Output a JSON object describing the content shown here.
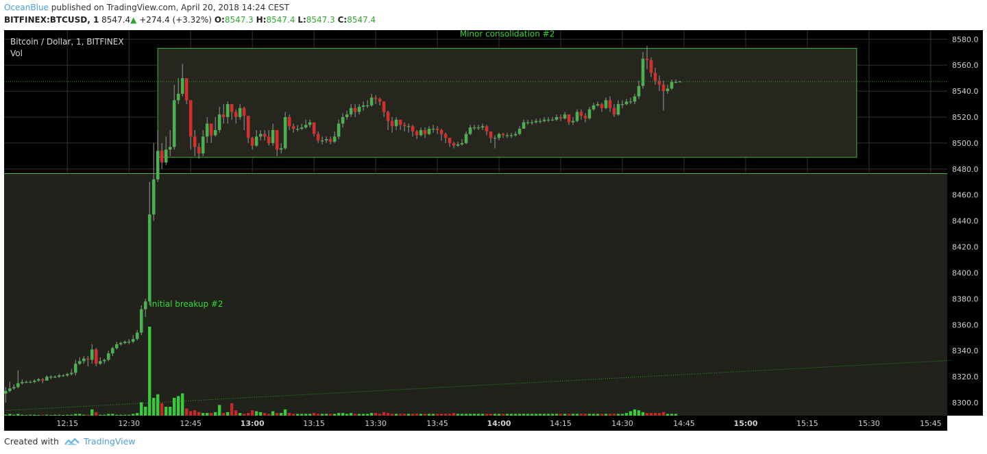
{
  "header": {
    "author": "OceanBlue",
    "published": " published on TradingView.com, April 20, 2018 14:24 CEST",
    "symbol": "BITFINEX:BTCUSD, 1",
    "last": "8547.4",
    "up_icon": "triangle-up-icon",
    "change": "+274.4 (+3.32%)",
    "o_label": "O:",
    "o": "8547.3",
    "h_label": "H:",
    "h": "8547.4",
    "l_label": "L:",
    "l": "8547.3",
    "c_label": "C:",
    "c": "8547.4"
  },
  "legend": {
    "title": "Bitcoin / Dollar, 1, BITFINEX",
    "vol": "Vol"
  },
  "annotations": {
    "box_label": "Minor consolidation #2",
    "breakup_label": "Initial breakup #2"
  },
  "footer": {
    "created": "Created with",
    "brand": "TradingView",
    "logo_icon": "tradingview-logo-icon"
  },
  "colors": {
    "background": "#000000",
    "up": "#4caf50",
    "down": "#d32f2f",
    "vol_up": "#3cc83c",
    "vol_down": "#c82828",
    "annotation": "#33dd33",
    "grid": "#333333",
    "author": "#4aa0d8"
  },
  "chart_data": {
    "type": "candlestick",
    "title": "Bitcoin / Dollar, 1, BITFINEX",
    "interval_minutes": 1,
    "start_time": "12:04",
    "ylim": [
      8290,
      8587
    ],
    "y_ticks": [
      8300,
      8320,
      8340,
      8360,
      8380,
      8400,
      8420,
      8440,
      8460,
      8480,
      8500,
      8520,
      8540,
      8560,
      8580
    ],
    "x_ticks": [
      {
        "label": "12:15",
        "bold": false
      },
      {
        "label": "12:30",
        "bold": false
      },
      {
        "label": "12:45",
        "bold": false
      },
      {
        "label": "13:00",
        "bold": true
      },
      {
        "label": "13:15",
        "bold": false
      },
      {
        "label": "13:30",
        "bold": false
      },
      {
        "label": "13:45",
        "bold": false
      },
      {
        "label": "14:00",
        "bold": true
      },
      {
        "label": "14:15",
        "bold": false
      },
      {
        "label": "14:30",
        "bold": false
      },
      {
        "label": "14:45",
        "bold": false
      },
      {
        "label": "15:00",
        "bold": true
      },
      {
        "label": "15:15",
        "bold": false
      },
      {
        "label": "15:30",
        "bold": false
      },
      {
        "label": "15:45",
        "bold": false
      }
    ],
    "x_tick_minutes": [
      15,
      30,
      45,
      60,
      75,
      90,
      105,
      120,
      135,
      150,
      165,
      180,
      195,
      210,
      225
    ],
    "x_end_minutes": 232,
    "closes": [
      8309,
      8311,
      8312,
      8315,
      8316,
      8316,
      8316,
      8317,
      8318,
      8317,
      8320,
      8320,
      8320,
      8321,
      8321,
      8322,
      8323,
      8330,
      8332,
      8334,
      8333,
      8341,
      8330,
      8332,
      8333,
      8338,
      8342,
      8345,
      8346,
      8347,
      8347,
      8349,
      8354,
      8372,
      8378,
      8445,
      8472,
      8494,
      8485,
      8495,
      8497,
      8533,
      8538,
      8550,
      8533,
      8505,
      8497,
      8492,
      8505,
      8515,
      8506,
      8510,
      8522,
      8520,
      8530,
      8524,
      8520,
      8527,
      8521,
      8504,
      8498,
      8505,
      8507,
      8505,
      8500,
      8510,
      8495,
      8496,
      8520,
      8513,
      8511,
      8511,
      8512,
      8514,
      8516,
      8507,
      8502,
      8502,
      8503,
      8501,
      8505,
      8515,
      8520,
      8522,
      8527,
      8524,
      8528,
      8529,
      8529,
      8535,
      8534,
      8532,
      8524,
      8517,
      8513,
      8518,
      8514,
      8513,
      8513,
      8509,
      8506,
      8510,
      8507,
      8511,
      8511,
      8510,
      8507,
      8504,
      8500,
      8498,
      8499,
      8500,
      8507,
      8512,
      8512,
      8512,
      8513,
      8509,
      8504,
      8504,
      8507,
      8506,
      8506,
      8506,
      8507,
      8511,
      8516,
      8516,
      8516,
      8517,
      8517,
      8518,
      8518,
      8518,
      8520,
      8519,
      8522,
      8516,
      8517,
      8524,
      8521,
      8519,
      8526,
      8529,
      8530,
      8527,
      8533,
      8527,
      8522,
      8530,
      8530,
      8532,
      8532,
      8536,
      8544,
      8565,
      8564,
      8554,
      8548,
      8545,
      8540,
      8542,
      8547,
      8547,
      8547.4
    ],
    "highs": [
      8312,
      8316,
      8314,
      8325,
      8318,
      8317,
      8317,
      8318,
      8319,
      8319,
      8321,
      8321,
      8321,
      8322,
      8322,
      8323,
      8326,
      8333,
      8335,
      8336,
      8336,
      8345,
      8342,
      8335,
      8334,
      8340,
      8343,
      8347,
      8347,
      8348,
      8349,
      8352,
      8356,
      8375,
      8380,
      8470,
      8500,
      8510,
      8500,
      8505,
      8510,
      8545,
      8550,
      8561,
      8550,
      8530,
      8510,
      8500,
      8510,
      8520,
      8515,
      8520,
      8528,
      8530,
      8532,
      8530,
      8526,
      8530,
      8528,
      8515,
      8505,
      8510,
      8510,
      8510,
      8510,
      8515,
      8508,
      8500,
      8524,
      8522,
      8515,
      8514,
      8515,
      8518,
      8518,
      8513,
      8509,
      8505,
      8505,
      8505,
      8509,
      8518,
      8523,
      8525,
      8530,
      8530,
      8530,
      8532,
      8533,
      8538,
      8537,
      8535,
      8532,
      8525,
      8520,
      8520,
      8518,
      8516,
      8515,
      8514,
      8510,
      8512,
      8512,
      8513,
      8514,
      8513,
      8511,
      8508,
      8504,
      8501,
      8501,
      8503,
      8509,
      8514,
      8514,
      8514,
      8515,
      8514,
      8508,
      8506,
      8508,
      8508,
      8508,
      8508,
      8509,
      8513,
      8518,
      8518,
      8518,
      8519,
      8519,
      8520,
      8520,
      8520,
      8522,
      8522,
      8524,
      8521,
      8520,
      8526,
      8526,
      8523,
      8528,
      8531,
      8532,
      8531,
      8535,
      8536,
      8530,
      8533,
      8533,
      8534,
      8535,
      8538,
      8548,
      8570,
      8575,
      8566,
      8558,
      8552,
      8548,
      8545,
      8549,
      8549,
      8548
    ],
    "lows": [
      8300,
      8308,
      8310,
      8311,
      8314,
      8315,
      8315,
      8315,
      8316,
      8315,
      8317,
      8318,
      8319,
      8319,
      8320,
      8320,
      8321,
      8321,
      8329,
      8330,
      8328,
      8330,
      8328,
      8329,
      8330,
      8332,
      8336,
      8341,
      8344,
      8345,
      8345,
      8346,
      8348,
      8352,
      8366,
      8375,
      8440,
      8470,
      8480,
      8483,
      8490,
      8495,
      8530,
      8536,
      8530,
      8495,
      8490,
      8488,
      8490,
      8500,
      8500,
      8505,
      8508,
      8515,
      8515,
      8518,
      8515,
      8518,
      8510,
      8500,
      8495,
      8497,
      8502,
      8502,
      8498,
      8498,
      8490,
      8492,
      8495,
      8510,
      8508,
      8509,
      8510,
      8511,
      8512,
      8505,
      8500,
      8499,
      8500,
      8499,
      8500,
      8503,
      8512,
      8518,
      8520,
      8520,
      8522,
      8525,
      8527,
      8528,
      8530,
      8529,
      8520,
      8510,
      8508,
      8510,
      8510,
      8509,
      8508,
      8505,
      8503,
      8505,
      8504,
      8506,
      8508,
      8507,
      8502,
      8500,
      8497,
      8496,
      8497,
      8498,
      8499,
      8506,
      8510,
      8510,
      8510,
      8506,
      8500,
      8496,
      8502,
      8504,
      8504,
      8504,
      8505,
      8506,
      8512,
      8514,
      8514,
      8515,
      8515,
      8516,
      8516,
      8517,
      8517,
      8517,
      8518,
      8514,
      8514,
      8516,
      8518,
      8516,
      8518,
      8525,
      8528,
      8524,
      8526,
      8524,
      8520,
      8521,
      8527,
      8529,
      8530,
      8530,
      8534,
      8542,
      8557,
      8551,
      8545,
      8540,
      8525,
      8538,
      8541,
      8546,
      8547.3
    ],
    "volumes_rel": [
      0.01,
      0.02,
      0.01,
      0.02,
      0.01,
      0.0,
      0.01,
      0.01,
      0.0,
      0.01,
      0.01,
      0.0,
      0.01,
      0.01,
      0.0,
      0.01,
      0.01,
      0.02,
      0.02,
      0.01,
      0.01,
      0.07,
      0.04,
      0.01,
      0.01,
      0.02,
      0.02,
      0.01,
      0.01,
      0.01,
      0.01,
      0.02,
      0.03,
      0.15,
      0.1,
      1.0,
      0.2,
      0.24,
      0.14,
      0.1,
      0.1,
      0.2,
      0.22,
      0.25,
      0.08,
      0.05,
      0.06,
      0.04,
      0.03,
      0.03,
      0.03,
      0.04,
      0.12,
      0.03,
      0.04,
      0.14,
      0.06,
      0.03,
      0.02,
      0.03,
      0.06,
      0.05,
      0.04,
      0.03,
      0.02,
      0.05,
      0.03,
      0.03,
      0.07,
      0.03,
      0.02,
      0.02,
      0.02,
      0.02,
      0.02,
      0.03,
      0.02,
      0.02,
      0.02,
      0.02,
      0.02,
      0.03,
      0.03,
      0.02,
      0.03,
      0.02,
      0.02,
      0.02,
      0.02,
      0.03,
      0.03,
      0.02,
      0.04,
      0.03,
      0.02,
      0.02,
      0.02,
      0.02,
      0.02,
      0.02,
      0.02,
      0.02,
      0.02,
      0.02,
      0.02,
      0.02,
      0.02,
      0.02,
      0.02,
      0.03,
      0.02,
      0.02,
      0.02,
      0.02,
      0.02,
      0.02,
      0.02,
      0.02,
      0.02,
      0.02,
      0.02,
      0.02,
      0.02,
      0.02,
      0.02,
      0.02,
      0.02,
      0.02,
      0.02,
      0.02,
      0.02,
      0.02,
      0.02,
      0.02,
      0.02,
      0.02,
      0.02,
      0.02,
      0.02,
      0.02,
      0.02,
      0.02,
      0.02,
      0.02,
      0.02,
      0.02,
      0.02,
      0.02,
      0.02,
      0.02,
      0.02,
      0.03,
      0.05,
      0.07,
      0.06,
      0.04,
      0.03,
      0.03,
      0.03,
      0.03,
      0.04,
      0.02,
      0.02,
      0.02
    ],
    "annotations": [
      {
        "type": "rectangle",
        "label": "Minor consolidation #2",
        "from_minute": 37,
        "to_minute": 207,
        "price_low": 8489,
        "price_high": 8573
      },
      {
        "type": "horizontal_line",
        "price": 8476.5
      },
      {
        "type": "trend_line",
        "style": "dotted",
        "from_minute": 0,
        "from_price": 8294,
        "to_minute": 230,
        "to_price": 8332.6
      },
      {
        "type": "text",
        "label": "Initial breakup #2",
        "minute": 40,
        "price": 8374
      },
      {
        "type": "price_line",
        "style": "dotted",
        "price": 8547.4
      }
    ]
  }
}
